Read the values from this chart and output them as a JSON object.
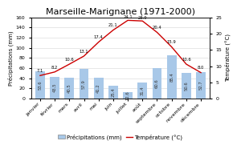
{
  "title": "Marseille-Marignane (1971-2000)",
  "months": [
    "janvier",
    "février",
    "mars",
    "avril",
    "mai",
    "juin",
    "juillet",
    "août",
    "septembre",
    "octobre",
    "novembre",
    "décembre"
  ],
  "precipitation": [
    53.6,
    43.5,
    40.5,
    57.9,
    41.2,
    25.4,
    12.6,
    31.4,
    60.6,
    85.4,
    50.6,
    52.7
  ],
  "temperature": [
    7.1,
    8.2,
    10.6,
    13.1,
    17.4,
    21.1,
    24.1,
    23.9,
    20.4,
    15.9,
    10.6,
    8.0
  ],
  "bar_color": "#a8c8e8",
  "line_color": "#cc0000",
  "ylabel_left": "Précipitations (mm)",
  "ylabel_right": "Température (°C)",
  "ylim_left": [
    0,
    160
  ],
  "ylim_right": [
    0,
    25
  ],
  "yticks_left": [
    0,
    20,
    40,
    60,
    80,
    100,
    120,
    140,
    160
  ],
  "yticks_right": [
    0,
    5,
    10,
    15,
    20,
    25
  ],
  "legend_precip": "Précipitations (mm)",
  "legend_temp": "Température (°C)",
  "title_fontsize": 8,
  "label_fontsize": 5,
  "tick_fontsize": 4.5,
  "bar_label_fontsize": 3.8,
  "line_label_fontsize": 3.8
}
